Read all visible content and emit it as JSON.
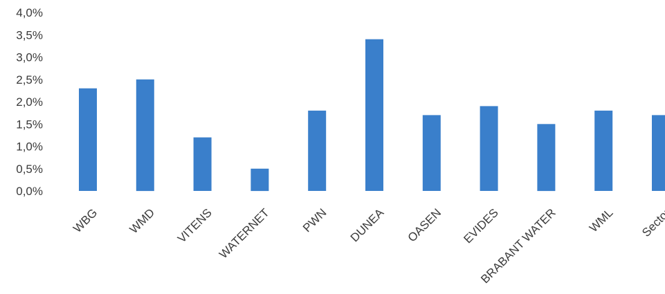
{
  "chart_data": {
    "type": "bar",
    "categories": [
      "WBG",
      "WMD",
      "VITENS",
      "WATERNET",
      "PWN",
      "DUNEA",
      "OASEN",
      "EVIDES",
      "BRABANT WATER",
      "WML",
      "Sector"
    ],
    "values": [
      2.3,
      2.5,
      1.2,
      0.5,
      1.8,
      3.4,
      1.7,
      1.9,
      1.5,
      1.8,
      1.7
    ],
    "y_ticks": [
      "0,0%",
      "0,5%",
      "1,0%",
      "1,5%",
      "2,0%",
      "2,5%",
      "3,0%",
      "3,5%",
      "4,0%"
    ],
    "ylim": [
      0,
      4.0
    ],
    "title": "",
    "xlabel": "",
    "ylabel": "",
    "grid": false,
    "legend": "none",
    "bar_color": "#3a7fcb"
  }
}
